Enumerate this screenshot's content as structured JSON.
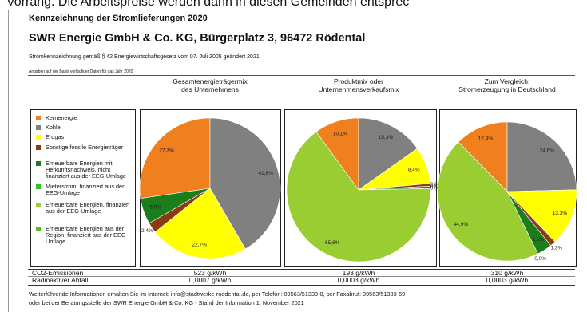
{
  "top_text": "Vorrang. Die Arbeitspreise werden dann in diesen Gemeinden entsprec",
  "header": {
    "title": "Kennzeichnung der Stromlieferungen 2020",
    "company": "SWR Energie GmbH & Co. KG, Bürgerplatz 3, 96472 Rödental",
    "law": "Stromkennzeichnung gemäß § 42 Energiewirtschaftsgesetz vom 07. Juli 2005 geändert 2021",
    "basis": "Angaben auf der Basis vorläufiger Daten für das Jahr 2020"
  },
  "legend": {
    "categories": [
      "Kernenergie",
      "Kohle",
      "Erdgas",
      "Sonstige fossile Energieträger",
      "Erneuerbare Energien mit Herkunftsnachweis, nicht finanziert aus der EEG-Umlage",
      "Mieterstrom, finanziert aus der EEG-Umlage",
      "Erneuerbare Energien, finanziert aus der EEG-Umlage",
      "Erneuerbare Energien aus der Region, finanziert aus der EEG-Umlage"
    ],
    "colors": [
      "#f07f1d",
      "#808080",
      "#ffff00",
      "#8b3a12",
      "#1b7d1b",
      "#2fc42f",
      "#9acd32",
      "#5cb82c"
    ]
  },
  "chart_data": [
    {
      "type": "pie",
      "title": [
        "Gesamtenergieträgermix",
        "des Unternehmens"
      ],
      "values": [
        27.3,
        41.6,
        22.7,
        2.4,
        6.0,
        null,
        null,
        null
      ],
      "value_labels": [
        "27,3%",
        "41,6%",
        "22,7%",
        "2,4%",
        "6,0%",
        null,
        null,
        null
      ]
    },
    {
      "type": "pie",
      "title": [
        "Produktmix oder",
        "Unternehmensverkaufsmix"
      ],
      "values": [
        10.1,
        15.3,
        8.4,
        0.6,
        0.5,
        0.0,
        65.6,
        null
      ],
      "value_labels": [
        "10,1%",
        "15,3%",
        "8,4%",
        "0,6%",
        "0,5%",
        "0,0%",
        "65,6%",
        null
      ]
    },
    {
      "type": "pie",
      "title": [
        "Zum Vergleich:",
        "Stromerzeugung in Deutschland"
      ],
      "values": [
        12.4,
        24.6,
        13.3,
        1.3,
        3.5,
        0.0,
        44.9,
        null
      ],
      "value_labels": [
        "12,4%",
        "24,6%",
        "13,3%",
        "1,3%",
        "3,5%",
        "0,0%",
        "44,9%",
        null
      ]
    }
  ],
  "table": {
    "rows": [
      [
        "CO2-Emissionen",
        "523 g/kWh",
        "193 g/kWh",
        "310 g/kWh"
      ],
      [
        "Radioaktiver Abfall",
        "0,0007 g/kWh",
        "0,0003 g/kWh",
        "0,0003 g/kWh"
      ]
    ]
  },
  "footer": [
    "Weiterführende Informationen erhalten Sie im Internet: info@stadtwerke-roedental.de, per Telefon: 09563/51333-0, per Faxabruf: 09563/51333-59",
    "oder bei der Beratungsstelle der SWR Energie GmbH & Co. KG - Stand der Information 1. November 2021"
  ]
}
